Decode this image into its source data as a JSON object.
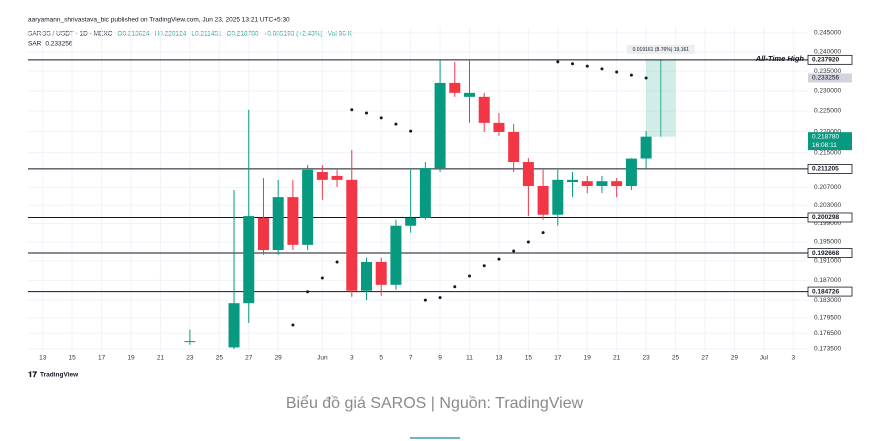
{
  "header": "aaryamann_shrivastava_bic published on TradingView.com, Jun 23, 2025 13:21 UTC+5:30",
  "chart_data": {
    "type": "candlestick",
    "legend": {
      "symbol": "SAROS / USDT · 1D · MEXC",
      "ohlc": [
        "O0.213624",
        "H0.220124",
        "L0.211451",
        "C0.218780"
      ],
      "change": "+0.005193 (+2.43%)",
      "volume": "Vol 96 K"
    },
    "x": [
      "2025-05-23",
      "2025-05-26",
      "2025-05-27",
      "2025-05-28",
      "2025-05-29",
      "2025-05-30",
      "2025-05-31",
      "2025-06-01",
      "2025-06-02",
      "2025-06-03",
      "2025-06-04",
      "2025-06-05",
      "2025-06-06",
      "2025-06-07",
      "2025-06-08",
      "2025-06-09",
      "2025-06-10",
      "2025-06-11",
      "2025-06-12",
      "2025-06-13",
      "2025-06-14",
      "2025-06-15",
      "2025-06-16",
      "2025-06-17",
      "2025-06-18",
      "2025-06-19",
      "2025-06-20",
      "2025-06-21",
      "2025-06-22",
      "2025-06-23"
    ],
    "open": [
      0.175,
      0.1738,
      0.1824,
      0.2002,
      0.1933,
      0.2048,
      0.1944,
      0.2105,
      0.2096,
      0.2087,
      0.1849,
      0.1908,
      0.1861,
      0.1985,
      0.2002,
      0.2114,
      0.232,
      0.2285,
      0.2285,
      0.2221,
      0.2199,
      0.2128,
      0.2073,
      0.2009,
      0.2082,
      0.2084,
      0.2073,
      0.2084,
      0.2073,
      0.213624
    ],
    "high": [
      0.1772,
      0.2064,
      0.2253,
      0.2091,
      0.2087,
      0.2087,
      0.2121,
      0.2121,
      0.211,
      0.2156,
      0.1917,
      0.1917,
      0.1998,
      0.211,
      0.2128,
      0.2379,
      0.2374,
      0.2379,
      0.2295,
      0.2245,
      0.2218,
      0.2137,
      0.211,
      0.211,
      0.2105,
      0.2096,
      0.2096,
      0.2091,
      0.2137,
      0.220124
    ],
    "low": [
      0.1743,
      0.1735,
      0.1785,
      0.1923,
      0.1923,
      0.1933,
      0.1933,
      0.2042,
      0.2071,
      0.1837,
      0.183,
      0.1839,
      0.1851,
      0.197,
      0.1998,
      0.2105,
      0.2285,
      0.2221,
      0.2199,
      0.219,
      0.2105,
      0.2006,
      0.1998,
      0.1985,
      0.2048,
      0.2057,
      0.2057,
      0.2048,
      0.2064,
      0.211451
    ],
    "close": [
      0.175,
      0.1824,
      0.2006,
      0.1933,
      0.2048,
      0.1944,
      0.211,
      0.2087,
      0.2087,
      0.1849,
      0.1908,
      0.1861,
      0.1985,
      0.2002,
      0.2114,
      0.232,
      0.2295,
      0.2295,
      0.2221,
      0.2199,
      0.2128,
      0.2073,
      0.2009,
      0.2087,
      0.2087,
      0.2073,
      0.2084,
      0.2073,
      0.2136,
      0.21878
    ],
    "up_color": "#089981",
    "down_color": "#f23645",
    "sar": {
      "name": "SAR",
      "color": "#131722",
      "values": [
        null,
        null,
        null,
        null,
        null,
        0.1781,
        0.1847,
        0.1875,
        0.1908,
        0.2253,
        0.2245,
        0.2233,
        0.2218,
        0.2201,
        0.183,
        0.1835,
        0.1857,
        0.1879,
        0.19,
        0.1914,
        0.1931,
        0.195,
        0.197,
        0.2374,
        0.2369,
        0.2363,
        0.2356,
        0.2348,
        0.234,
        0.233256
      ]
    },
    "log_scale": true,
    "ylim": [
      0.1735,
      0.245
    ],
    "yticks": [
      {
        "value": 0.245,
        "label": "0.245000"
      },
      {
        "value": 0.24,
        "label": "0.240000"
      },
      {
        "value": 0.235,
        "label": "0.235000"
      },
      {
        "value": 0.23,
        "label": "0.230000"
      },
      {
        "value": 0.225,
        "label": "0.225000"
      },
      {
        "value": 0.22,
        "label": "0.220000"
      },
      {
        "value": 0.215,
        "label": "0.215000"
      },
      {
        "value": 0.207,
        "label": "0.207000"
      },
      {
        "value": 0.203,
        "label": "0.203000"
      },
      {
        "value": 0.199,
        "label": "0.199000"
      },
      {
        "value": 0.195,
        "label": "0.195000"
      },
      {
        "value": 0.191,
        "label": "0.191000"
      },
      {
        "value": 0.187,
        "label": "0.187000"
      },
      {
        "value": 0.183,
        "label": "0.183000"
      },
      {
        "value": 0.1795,
        "label": "0.179500"
      },
      {
        "value": 0.1765,
        "label": "0.176500"
      },
      {
        "value": 0.1735,
        "label": "0.173500"
      }
    ],
    "xlim": [
      "2025-05-12",
      "2025-07-04"
    ],
    "xticks": [
      {
        "value": "2025-05-13",
        "label": "13"
      },
      {
        "value": "2025-05-15",
        "label": "15"
      },
      {
        "value": "2025-05-17",
        "label": "17"
      },
      {
        "value": "2025-05-19",
        "label": "19"
      },
      {
        "value": "2025-05-21",
        "label": "21"
      },
      {
        "value": "2025-05-23",
        "label": "23"
      },
      {
        "value": "2025-05-25",
        "label": "25"
      },
      {
        "value": "2025-05-27",
        "label": "27"
      },
      {
        "value": "2025-05-29",
        "label": "29"
      },
      {
        "value": "2025-06-01",
        "label": "Jun"
      },
      {
        "value": "2025-06-03",
        "label": "3"
      },
      {
        "value": "2025-06-05",
        "label": "5"
      },
      {
        "value": "2025-06-07",
        "label": "7"
      },
      {
        "value": "2025-06-09",
        "label": "9"
      },
      {
        "value": "2025-06-11",
        "label": "11"
      },
      {
        "value": "2025-06-13",
        "label": "13"
      },
      {
        "value": "2025-06-15",
        "label": "15"
      },
      {
        "value": "2025-06-17",
        "label": "17"
      },
      {
        "value": "2025-06-19",
        "label": "19"
      },
      {
        "value": "2025-06-21",
        "label": "21"
      },
      {
        "value": "2025-06-23",
        "label": "23"
      },
      {
        "value": "2025-06-25",
        "label": "25"
      },
      {
        "value": "2025-06-27",
        "label": "27"
      },
      {
        "value": "2025-06-29",
        "label": "29"
      },
      {
        "value": "2025-07-01",
        "label": "Jul"
      },
      {
        "value": "2025-07-03",
        "label": "3"
      }
    ],
    "grid": true,
    "levels": [
      {
        "value": 0.23792,
        "label": "0.237920",
        "annotation": "All-Time High"
      },
      {
        "value": 0.211205,
        "label": "0.211205"
      },
      {
        "value": 0.200298,
        "label": "0.200298"
      },
      {
        "value": 0.192668,
        "label": "0.192668"
      },
      {
        "value": 0.184726,
        "label": "0.184726"
      }
    ],
    "price_labels": [
      {
        "value": 0.233256,
        "label": "0.233256",
        "color": "#d1d4dc"
      },
      {
        "value": 0.21878,
        "label": "0.218780",
        "sub": "16:08:11",
        "color": "#089981"
      }
    ],
    "measure": {
      "from": 0.218759,
      "to": 0.23792,
      "x": [
        "2025-06-23",
        "2025-06-25"
      ],
      "label": "0.019161 (8.76%) 19,161",
      "color": "#089981"
    }
  },
  "footer": {
    "logo": "TradingView",
    "caption": "Biểu đồ giá SAROS | Nguồn: TradingView"
  }
}
